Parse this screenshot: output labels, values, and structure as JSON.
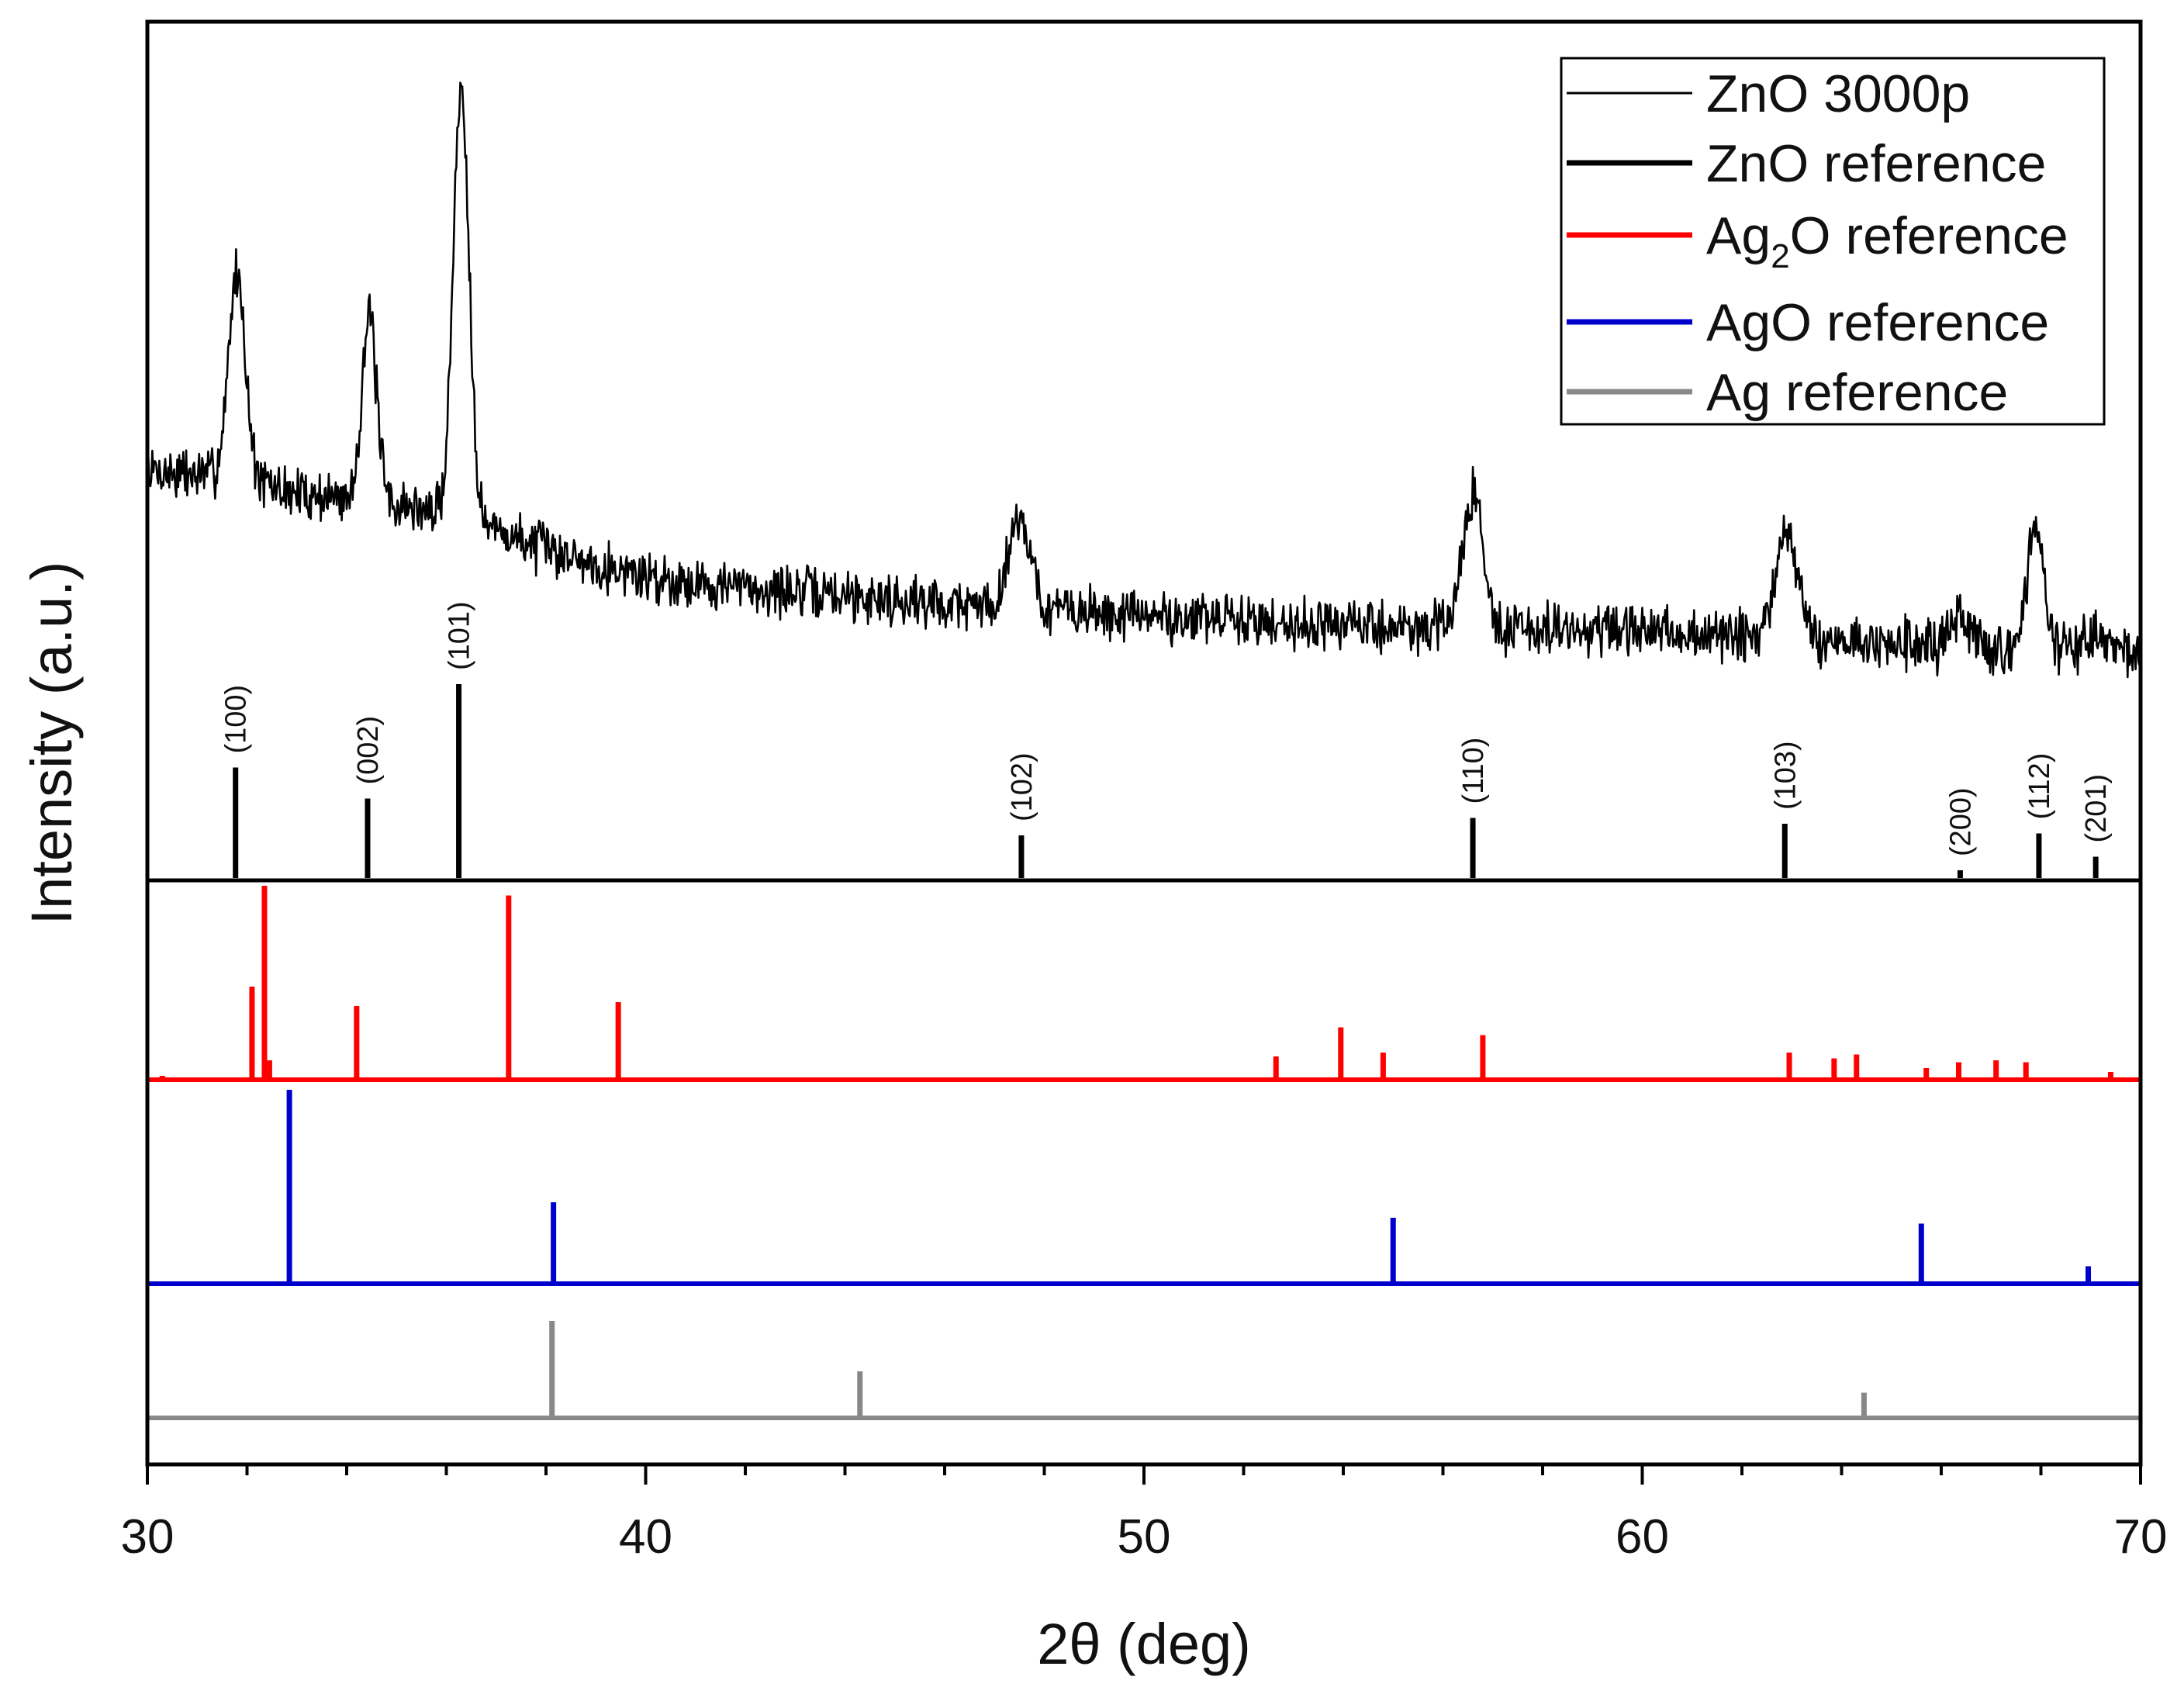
{
  "chart_data": {
    "type": "line",
    "title": "",
    "xlabel": "2θ (deg)",
    "ylabel": "Intensity (a.u.)",
    "xlim": [
      30,
      70
    ],
    "x_ticks": [
      "30",
      "40",
      "50",
      "60",
      "70"
    ],
    "x_tick_values": [
      30,
      40,
      50,
      60,
      70
    ],
    "y_ticks_shown": false,
    "grid": false,
    "legend_position": "top-right",
    "legend": [
      {
        "label": "ZnO 3000p",
        "sub": "",
        "tail": "",
        "color": "#000000",
        "line": "thin"
      },
      {
        "label": "ZnO reference",
        "sub": "",
        "tail": "",
        "color": "#000000",
        "line": "thick"
      },
      {
        "label": "Ag",
        "sub": "2",
        "tail": "O reference",
        "color": "#ff0000",
        "line": "thick"
      },
      {
        "label": "AgO reference",
        "sub": "",
        "tail": "",
        "color": "#0000cc",
        "line": "thick"
      },
      {
        "label": "Ag reference",
        "sub": "",
        "tail": "",
        "color": "#888888",
        "line": "thick"
      }
    ],
    "series": [
      {
        "name": "ZnO 3000p",
        "kind": "pattern",
        "color": "#000000",
        "background": [
          [
            30,
            0.4
          ],
          [
            31.5,
            0.39
          ],
          [
            33,
            0.36
          ],
          [
            35,
            0.34
          ],
          [
            36.5,
            0.31
          ],
          [
            38,
            0.26
          ],
          [
            40,
            0.21
          ],
          [
            42,
            0.19
          ],
          [
            45,
            0.17
          ],
          [
            48,
            0.15
          ],
          [
            50,
            0.14
          ],
          [
            55,
            0.12
          ],
          [
            60,
            0.11
          ],
          [
            65,
            0.09
          ],
          [
            70,
            0.07
          ]
        ],
        "peaks": [
          {
            "x": 31.8,
            "height": 0.37,
            "width": 0.4
          },
          {
            "x": 34.45,
            "height": 0.33,
            "width": 0.35
          },
          {
            "x": 36.3,
            "height": 0.77,
            "width": 0.38
          },
          {
            "x": 47.5,
            "height": 0.17,
            "width": 0.5
          },
          {
            "x": 56.6,
            "height": 0.24,
            "width": 0.5
          },
          {
            "x": 62.9,
            "height": 0.2,
            "width": 0.5
          },
          {
            "x": 66.4,
            "height": 0.05,
            "width": 0.4
          },
          {
            "x": 67.9,
            "height": 0.22,
            "width": 0.4
          },
          {
            "x": 69.1,
            "height": 0.05,
            "width": 0.4
          }
        ],
        "noise_amplitude": 0.075
      },
      {
        "name": "ZnO reference",
        "kind": "stick",
        "color": "#000000",
        "hkl": [
          "(100)",
          "(002)",
          "(101)",
          "(102)",
          "(110)",
          "(103)",
          "(200)",
          "(112)",
          "(201)"
        ],
        "x": [
          31.77,
          34.42,
          36.25,
          47.54,
          56.6,
          62.86,
          66.38,
          67.96,
          69.1
        ],
        "y": [
          57,
          41,
          100,
          22,
          31,
          28,
          4,
          23,
          11
        ]
      },
      {
        "name": "Ag2O reference",
        "kind": "stick",
        "color": "#ff0000",
        "x": [
          30.3,
          32.1,
          32.35,
          32.45,
          34.2,
          37.25,
          39.45,
          52.65,
          53.95,
          54.8,
          56.8,
          62.95,
          63.85,
          64.3,
          65.7,
          66.35,
          67.1,
          67.7,
          69.4
        ],
        "y": [
          2,
          48,
          100,
          10,
          38,
          95,
          40,
          12,
          27,
          14,
          23,
          14,
          11,
          13,
          6,
          9,
          10,
          9,
          4
        ]
      },
      {
        "name": "AgO reference",
        "kind": "stick",
        "color": "#0000cc",
        "x": [
          32.85,
          38.15,
          55.0,
          65.6,
          68.95
        ],
        "y": [
          100,
          42,
          34,
          31,
          9
        ]
      },
      {
        "name": "Ag reference",
        "kind": "stick",
        "color": "#888888",
        "x": [
          38.12,
          44.3,
          64.45
        ],
        "y": [
          100,
          48,
          26
        ]
      }
    ]
  }
}
